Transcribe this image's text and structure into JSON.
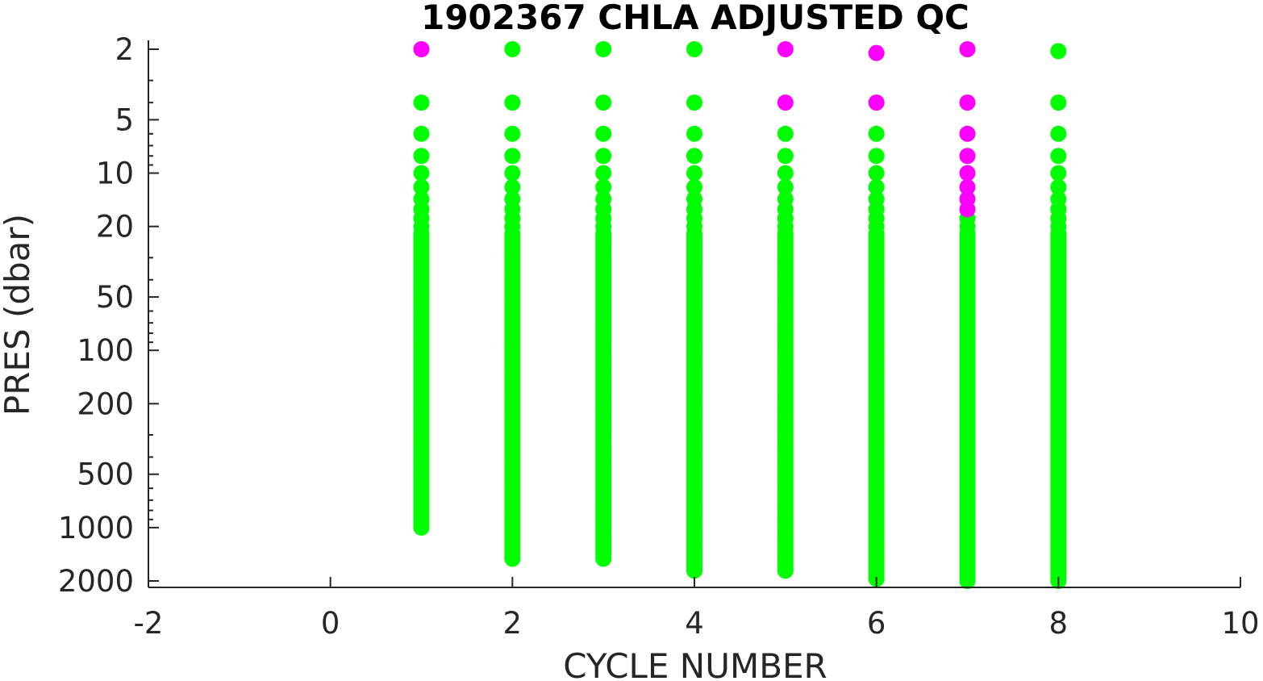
{
  "chart_data": {
    "type": "scatter",
    "title": "1902367  CHLA ADJUSTED QC",
    "xlabel": "CYCLE NUMBER",
    "ylabel": "PRES (dbar)",
    "xlim": [
      -2,
      10
    ],
    "ylim": [
      2,
      2000
    ],
    "y_scale": "log",
    "y_reversed": true,
    "grid": false,
    "x_ticks": [
      -2,
      0,
      2,
      4,
      6,
      8,
      10
    ],
    "x_tick_labels": [
      "-2",
      "0",
      "2",
      "4",
      "6",
      "8",
      "10"
    ],
    "y_ticks": [
      2,
      5,
      10,
      20,
      50,
      100,
      200,
      500,
      1000,
      2000
    ],
    "y_tick_labels": [
      "2",
      "5",
      "10",
      "20",
      "50",
      "100",
      "200",
      "500",
      "1000",
      "2000"
    ],
    "colors": {
      "flag_good": "#00ff00",
      "flag_other": "#ff00ff"
    },
    "profiles": [
      {
        "cycle": 1,
        "max_pres": 1000,
        "magenta_top": [
          2.0
        ],
        "green_start": 4.0
      },
      {
        "cycle": 2,
        "max_pres": 1500,
        "magenta_top": [],
        "green_start": 2.0
      },
      {
        "cycle": 3,
        "max_pres": 1500,
        "magenta_top": [],
        "green_start": 2.0
      },
      {
        "cycle": 4,
        "max_pres": 1750,
        "magenta_top": [],
        "green_start": 2.0
      },
      {
        "cycle": 5,
        "max_pres": 1750,
        "magenta_top": [
          2.0,
          4.0
        ],
        "green_start": 6.0
      },
      {
        "cycle": 6,
        "max_pres": 1950,
        "magenta_top": [
          2.1,
          4.0
        ],
        "green_start": 6.0
      },
      {
        "cycle": 7,
        "max_pres": 2000,
        "magenta_top": [
          2.0,
          4.0,
          6.0,
          8.0,
          10.0,
          12.0,
          14.0,
          16.0
        ],
        "green_start": 18.0
      },
      {
        "cycle": 8,
        "max_pres": 2000,
        "magenta_top": [],
        "green_start": 2.05
      }
    ]
  }
}
